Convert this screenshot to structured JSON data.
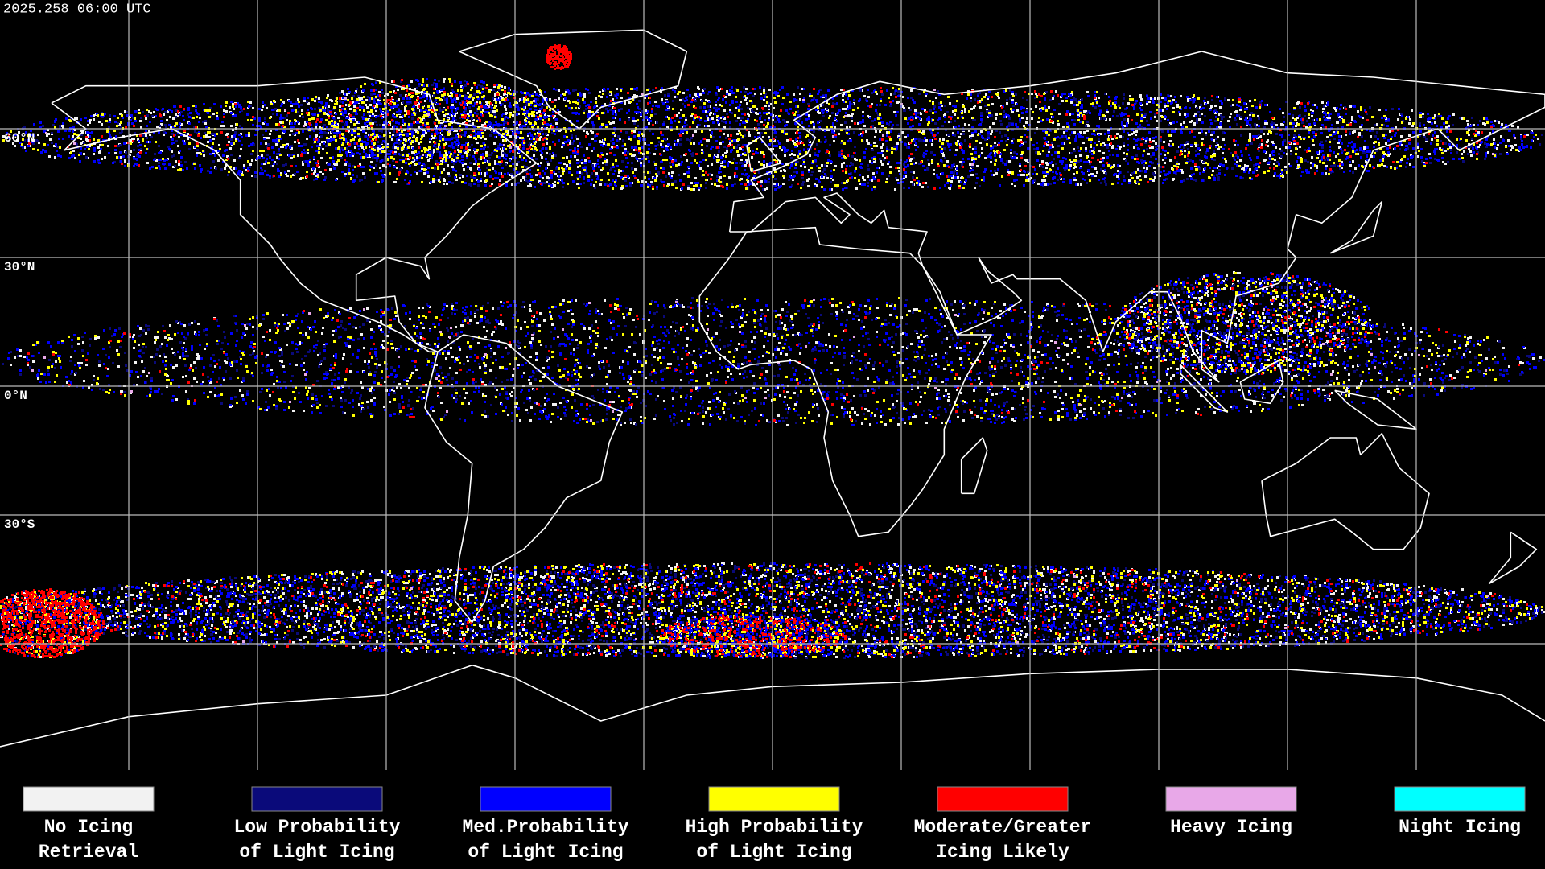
{
  "header": {
    "timestamp": "2025.258 06:00 UTC"
  },
  "map": {
    "lat_labels": [
      "60°N",
      "30°N",
      "0°N",
      "30°S"
    ]
  },
  "legend": [
    {
      "label": [
        "No Icing",
        "Retrieval"
      ],
      "color": "#f2f2f2"
    },
    {
      "label": [
        "Low Probability",
        "of Light Icing"
      ],
      "color": "#0a0a7a"
    },
    {
      "label": [
        "Med.Probability",
        "of Light Icing"
      ],
      "color": "#0000ff"
    },
    {
      "label": [
        "High Probability",
        "of Light Icing"
      ],
      "color": "#ffff00"
    },
    {
      "label": [
        "Moderate/Greater",
        "Icing Likely"
      ],
      "color": "#ff0000"
    },
    {
      "label": [
        "Heavy Icing"
      ],
      "color": "#e8a8e8"
    },
    {
      "label": [
        "Night Icing"
      ],
      "color": "#00ffff"
    }
  ]
}
